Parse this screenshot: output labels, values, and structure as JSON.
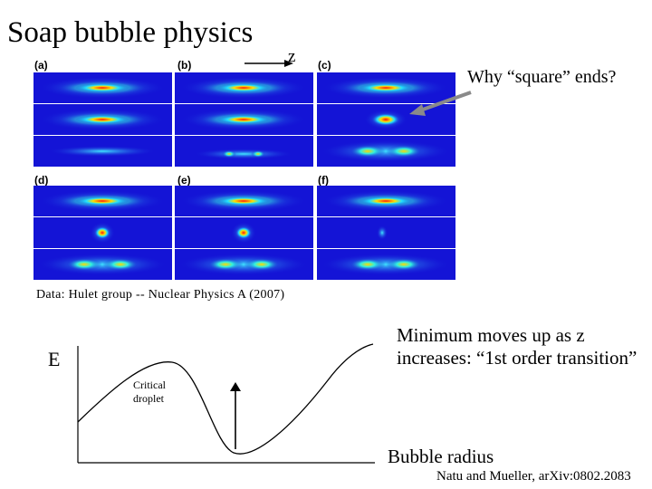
{
  "title": "Soap bubble physics",
  "axis_z": "z",
  "question": "Why “square” ends?",
  "panels": [
    {
      "label": "(a)"
    },
    {
      "label": "(b)"
    },
    {
      "label": "(c)"
    },
    {
      "label": "(d)"
    },
    {
      "label": "(e)"
    },
    {
      "label": "(f)"
    }
  ],
  "caption": "Data: Hulet group -- Nuclear Physics A (2007)",
  "minimum_note": "Minimum moves up as z increases: “1st order transition”",
  "energy_plot": {
    "y_label": "E",
    "x_label": "Bubble radius",
    "annotation": "Critical droplet"
  },
  "reference": "Natu and Mueller, arXiv:0802.2083",
  "colors": {
    "strip_background": "#1414d6",
    "arrow": "#8a8a8a"
  }
}
